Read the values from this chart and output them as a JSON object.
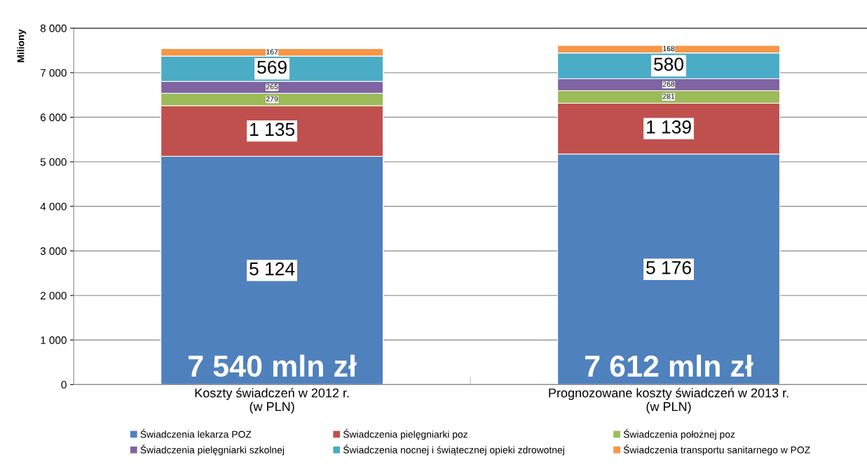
{
  "chart_data": {
    "type": "bar",
    "stacked": true,
    "ylabel": "Miliony",
    "categories": [
      "Koszty świadczeń w 2012 r.\n(w PLN)",
      "Prognozowane koszty świadczeń w 2013 r.\n(w PLN)"
    ],
    "series": [
      {
        "name": "Świadczenia lekarza POZ",
        "color": "#4f81bd",
        "values": [
          5124,
          5176
        ],
        "value_labels": [
          "5 124",
          "5 176"
        ]
      },
      {
        "name": "Świadczenia pielęgniarki poz",
        "color": "#c0504d",
        "values": [
          1135,
          1139
        ],
        "value_labels": [
          "1 135",
          "1 139"
        ]
      },
      {
        "name": "Świadczenia położnej poz",
        "color": "#9bbb59",
        "values": [
          279,
          281
        ],
        "value_labels": [
          "279",
          "281"
        ]
      },
      {
        "name": "Świadczenia pielęgniarki szkolnej",
        "color": "#8064a2",
        "values": [
          265,
          268
        ],
        "value_labels": [
          "265",
          "268"
        ]
      },
      {
        "name": "Świadczenia nocnej i świątecznej opieki zdrowotnej",
        "color": "#4bacc6",
        "values": [
          569,
          580
        ],
        "value_labels": [
          "569",
          "580"
        ]
      },
      {
        "name": "Świadczenia transportu sanitarnego w POZ",
        "color": "#f79646",
        "values": [
          167,
          168
        ],
        "value_labels": [
          "167",
          "168"
        ]
      }
    ],
    "totals": [
      "7 540 mln zł",
      "7 612 mln zł"
    ],
    "ylim": [
      0,
      8000
    ],
    "yticks": [
      {
        "value": 0,
        "label": "0"
      },
      {
        "value": 1000,
        "label": "1 000"
      },
      {
        "value": 2000,
        "label": "2 000"
      },
      {
        "value": 3000,
        "label": "3 000"
      },
      {
        "value": 4000,
        "label": "4 000"
      },
      {
        "value": 5000,
        "label": "5 000"
      },
      {
        "value": 6000,
        "label": "6 000"
      },
      {
        "value": 7000,
        "label": "7 000"
      },
      {
        "value": 8000,
        "label": "8 000"
      }
    ],
    "grid": "y",
    "legend": "bottom"
  }
}
